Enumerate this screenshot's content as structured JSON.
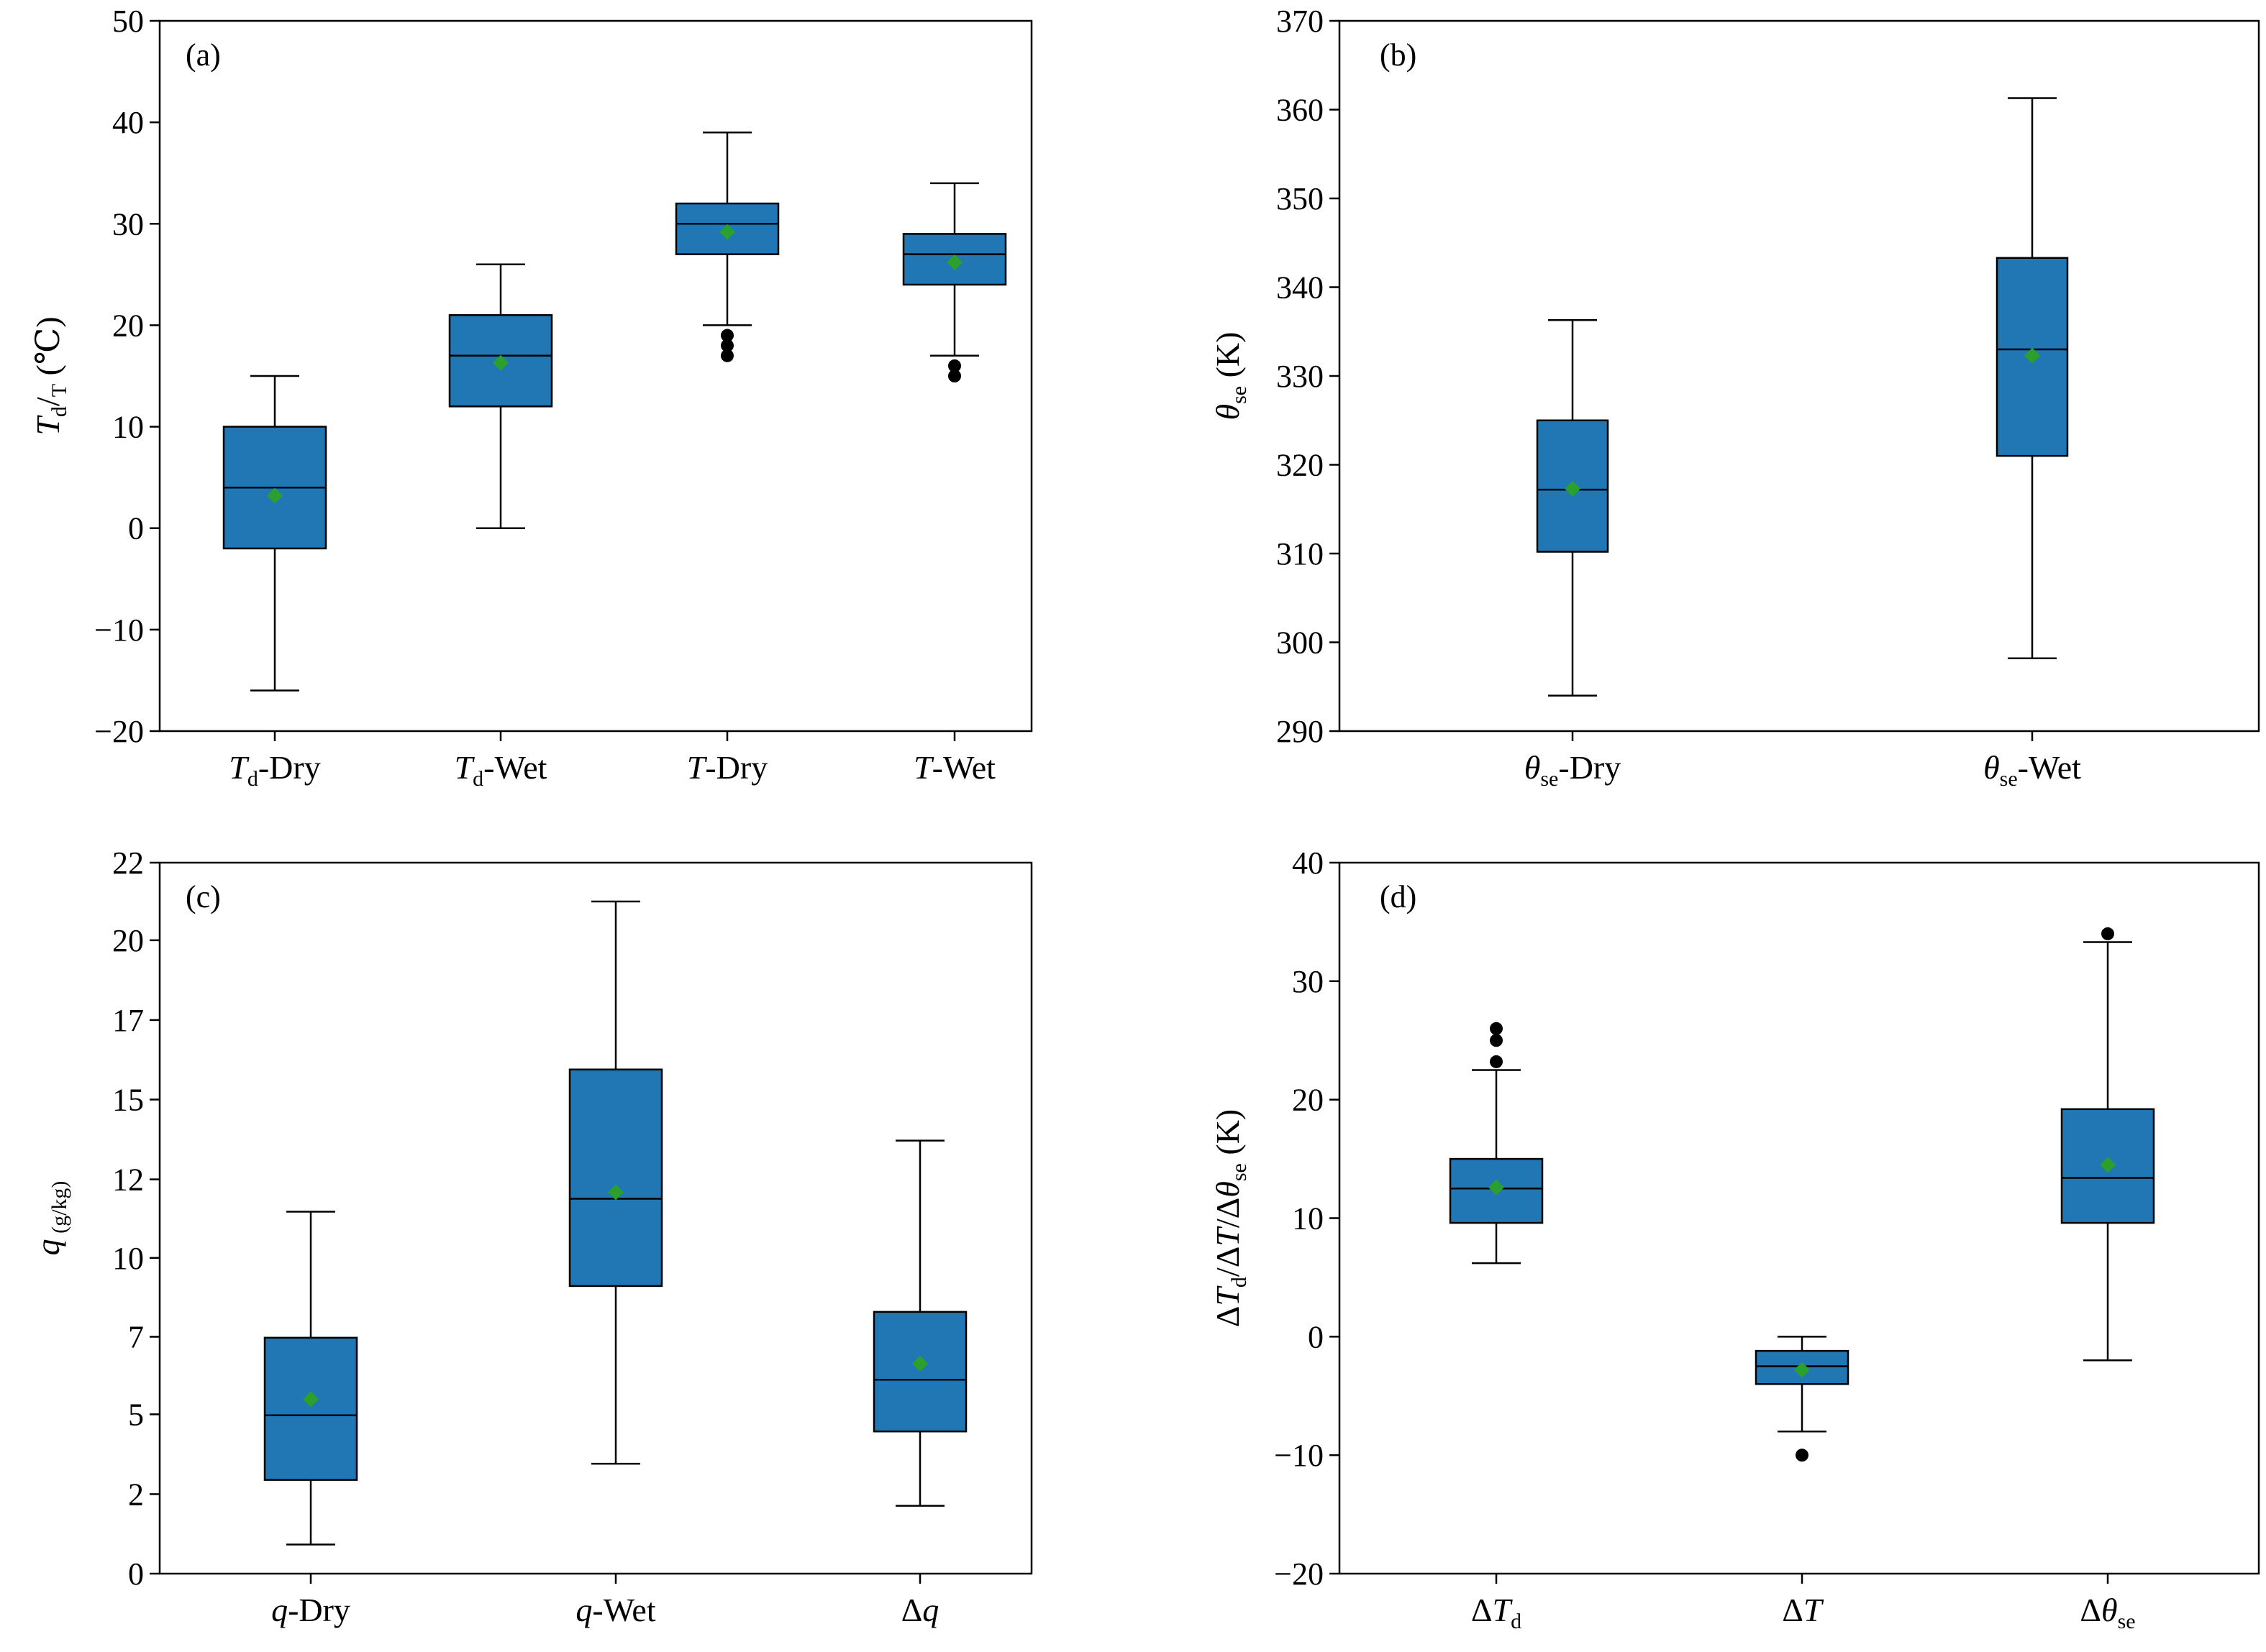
{
  "colors": {
    "box_fill": "#2077B4",
    "mean_marker": "#2CA02C",
    "outlier": "#000000"
  },
  "chart_data": [
    {
      "type": "box",
      "panel": "(a)",
      "ylabel": [
        "T",
        "d",
        "/",
        "T",
        " (℃)"
      ],
      "ylim": [
        -20,
        50
      ],
      "yticks": [
        -20,
        -10,
        0,
        10,
        20,
        30,
        40,
        50
      ],
      "ytick_labels": [
        "−20",
        "−10",
        "0",
        "10",
        "20",
        "30",
        "40",
        "50"
      ],
      "categories": [
        {
          "label": [
            "T",
            "d",
            "-Dry"
          ],
          "whisker_low": -16,
          "q1": -2,
          "median": 4,
          "q3": 10,
          "whisker_high": 15,
          "mean": 3.2,
          "outliers": []
        },
        {
          "label": [
            "T",
            "d",
            "-Wet"
          ],
          "whisker_low": 0,
          "q1": 12,
          "median": 17,
          "q3": 21,
          "whisker_high": 26,
          "mean": 16.3,
          "outliers": []
        },
        {
          "label": [
            "T",
            "",
            "-Dry"
          ],
          "whisker_low": 20,
          "q1": 27,
          "median": 30,
          "q3": 32,
          "whisker_high": 39,
          "mean": 29.2,
          "outliers": [
            19,
            18,
            17
          ]
        },
        {
          "label": [
            "T",
            "",
            "-Wet"
          ],
          "whisker_low": 17,
          "q1": 24,
          "median": 27,
          "q3": 29,
          "whisker_high": 34,
          "mean": 26.2,
          "outliers": [
            16,
            15
          ]
        }
      ]
    },
    {
      "type": "box",
      "panel": "(b)",
      "ylabel": [
        "θ",
        "se",
        " (K)",
        "",
        ""
      ],
      "ylim": [
        290,
        370
      ],
      "yticks": [
        290,
        300,
        310,
        320,
        330,
        340,
        350,
        360,
        370
      ],
      "ytick_labels": [
        "290",
        "300",
        "310",
        "320",
        "330",
        "340",
        "350",
        "360",
        "370"
      ],
      "categories": [
        {
          "label": [
            "θ",
            "se",
            "-Dry"
          ],
          "whisker_low": 294,
          "q1": 310.2,
          "median": 317.2,
          "q3": 325,
          "whisker_high": 336.3,
          "mean": 317.3,
          "outliers": []
        },
        {
          "label": [
            "θ",
            "se",
            "-Wet"
          ],
          "whisker_low": 298.2,
          "q1": 321,
          "median": 333,
          "q3": 343.3,
          "whisker_high": 361.3,
          "mean": 332.3,
          "outliers": []
        }
      ]
    },
    {
      "type": "box",
      "panel": "(c)",
      "ylabel": [
        "q",
        " (g/kg)",
        "",
        "",
        ""
      ],
      "ylim": [
        0,
        22
      ],
      "yticks": [
        0,
        2.46,
        4.93,
        7.33,
        9.77,
        12.2,
        14.67,
        17.13,
        19.6,
        22
      ],
      "ytick_labels": [
        "0",
        "2",
        "5",
        "7",
        "10",
        "12",
        "15",
        "17",
        "20",
        "22"
      ],
      "categories": [
        {
          "label": [
            "q",
            "",
            "-Dry"
          ],
          "whisker_low": 0.9,
          "q1": 2.9,
          "median": 4.9,
          "q3": 7.3,
          "whisker_high": 11.2,
          "mean": 5.4,
          "outliers": []
        },
        {
          "label": [
            "q",
            "",
            "-Wet"
          ],
          "whisker_low": 3.4,
          "q1": 8.9,
          "median": 11.6,
          "q3": 15.6,
          "whisker_high": 20.8,
          "mean": 11.8,
          "outliers": []
        },
        {
          "label": [
            "Δq",
            "",
            ""
          ],
          "whisker_low": 2.1,
          "q1": 4.4,
          "median": 6.0,
          "q3": 8.1,
          "whisker_high": 13.4,
          "mean": 6.5,
          "outliers": []
        }
      ]
    },
    {
      "type": "box",
      "panel": "(d)",
      "ylabel": [
        "ΔT",
        "d",
        "/ΔT/Δθ",
        "se",
        " (K)"
      ],
      "ylim": [
        -20,
        40
      ],
      "yticks": [
        -20,
        -10,
        0,
        10,
        20,
        30,
        40
      ],
      "ytick_labels": [
        "−20",
        "−10",
        "0",
        "10",
        "20",
        "30",
        "40"
      ],
      "categories": [
        {
          "label": [
            "ΔT",
            "d",
            ""
          ],
          "whisker_low": 6.2,
          "q1": 9.6,
          "median": 12.5,
          "q3": 15,
          "whisker_high": 22.5,
          "mean": 12.6,
          "outliers": [
            23.2,
            25,
            26
          ]
        },
        {
          "label": [
            "ΔT",
            "",
            ""
          ],
          "whisker_low": -8,
          "q1": -4,
          "median": -2.5,
          "q3": -1.2,
          "whisker_high": 0,
          "mean": -2.8,
          "outliers": [
            -10
          ]
        },
        {
          "label": [
            "Δθ",
            "se",
            ""
          ],
          "whisker_low": -2,
          "q1": 9.6,
          "median": 13.4,
          "q3": 19.2,
          "whisker_high": 33.3,
          "mean": 14.5,
          "outliers": [
            34
          ]
        }
      ]
    }
  ]
}
